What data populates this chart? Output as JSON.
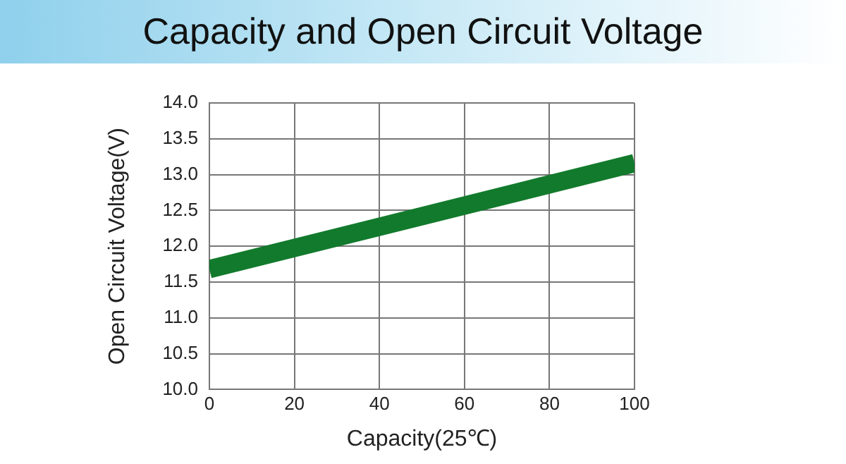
{
  "chart_data": {
    "type": "line",
    "title": "Capacity and Open Circuit Voltage",
    "xlabel": "Capacity(25℃)",
    "ylabel": "Open Circuit Voltage(V)",
    "x": [
      0,
      100
    ],
    "series": [
      {
        "color": "#127a2c",
        "values": [
          11.68,
          13.16
        ]
      }
    ],
    "xlim": [
      0,
      100
    ],
    "xticks": [
      0,
      20,
      40,
      60,
      80,
      100
    ],
    "ylim": [
      10,
      14
    ],
    "yticks": [
      {
        "value": 10,
        "label": "10.0"
      },
      {
        "value": 10.5,
        "label": "10.5"
      },
      {
        "value": 11,
        "label": "11.0"
      },
      {
        "value": 11.5,
        "label": "11.5"
      },
      {
        "value": 12,
        "label": "12.0"
      },
      {
        "value": 12.5,
        "label": "12.5"
      },
      {
        "value": 13,
        "label": "13.0"
      },
      {
        "value": 13.5,
        "label": "13.5"
      },
      {
        "value": 14,
        "label": "14.0"
      }
    ],
    "grid": true,
    "legend": false,
    "line_style": "solid"
  }
}
